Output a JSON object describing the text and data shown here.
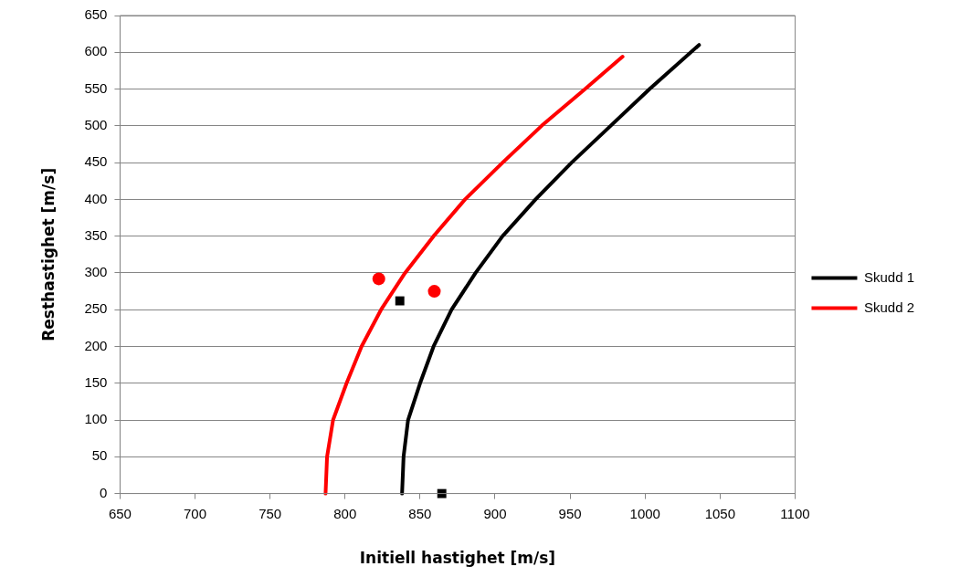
{
  "chart_data": {
    "type": "line",
    "xlabel": "Initiell hastighet [m/s]",
    "ylabel": "Resthastighet [m/s]",
    "xlim": [
      650,
      1100
    ],
    "xticks": [
      650,
      700,
      750,
      800,
      850,
      900,
      950,
      1000,
      1050,
      1100
    ],
    "ylim": [
      0,
      650
    ],
    "yticks": [
      0,
      50,
      100,
      150,
      200,
      250,
      300,
      350,
      400,
      450,
      500,
      550,
      600,
      650
    ],
    "grid": "y",
    "legend": "right",
    "marker": "none",
    "line_style": "solid",
    "series": [
      {
        "name": "Skudd 1",
        "color": "#000000",
        "x": [
          838,
          839,
          842,
          850,
          859,
          871,
          887,
          905,
          927,
          951,
          977,
          1003,
          1036
        ],
        "values": [
          0,
          50,
          100,
          150,
          200,
          250,
          300,
          350,
          400,
          450,
          500,
          550,
          610
        ]
      },
      {
        "name": "Skudd 2",
        "color": "#ff0000",
        "x": [
          787,
          788,
          792,
          801,
          811,
          824,
          840,
          859,
          880,
          905,
          931,
          960,
          985
        ],
        "values": [
          0,
          50,
          100,
          150,
          200,
          250,
          300,
          350,
          400,
          450,
          500,
          550,
          594
        ]
      },
      {
        "type": "scatter",
        "marker": "square",
        "color": "#000000",
        "x": [
          836.5,
          864.5
        ],
        "values": [
          262,
          0
        ]
      },
      {
        "type": "scatter",
        "marker": "circle",
        "color": "#ff0000",
        "x": [
          822.5,
          859.5
        ],
        "values": [
          292,
          275
        ]
      }
    ]
  }
}
